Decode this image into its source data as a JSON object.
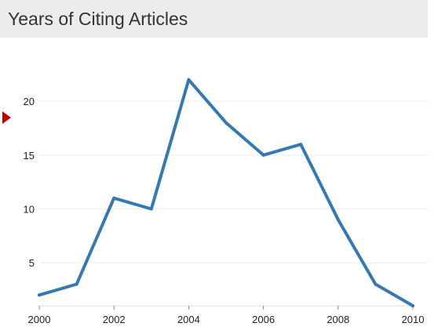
{
  "panel": {
    "title": "Years of Citing Articles"
  },
  "colors": {
    "line": "#3579b0",
    "grid": "#eeeeee",
    "header_bg": "#ececec",
    "pointer_arrow": "#c00000"
  },
  "chart_data": {
    "type": "line",
    "title": "",
    "xlabel": "",
    "ylabel": "",
    "x": [
      2000,
      2001,
      2002,
      2003,
      2004,
      2005,
      2006,
      2007,
      2008,
      2009,
      2010
    ],
    "series": [
      {
        "values": [
          2,
          3,
          11,
          10,
          22,
          18,
          15,
          16,
          9,
          3,
          1
        ]
      }
    ],
    "xticks": [
      "2000",
      "2002",
      "2004",
      "2006",
      "2008",
      "2010"
    ],
    "yticks": [
      "5",
      "10",
      "15",
      "20"
    ],
    "xlim": [
      2000,
      2010
    ],
    "ylim": [
      1,
      23
    ],
    "grid": true,
    "legend": "none"
  }
}
